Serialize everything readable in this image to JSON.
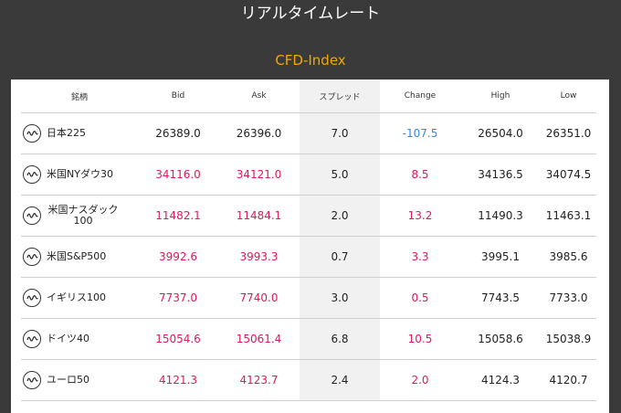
{
  "header": {
    "title": "リアルタイムレート"
  },
  "section": {
    "title": "CFD-Index"
  },
  "columns": [
    "銘柄",
    "Bid",
    "Ask",
    "スプレッド",
    "Change",
    "High",
    "Low"
  ],
  "rows": [
    {
      "name": "日本225",
      "bid": "26389.0",
      "ask": "26396.0",
      "spread": "7.0",
      "change": "-107.5",
      "high": "26504.0",
      "low": "26351.0"
    },
    {
      "name": "米国NYダウ30",
      "bid": "34116.0",
      "ask": "34121.0",
      "spread": "5.0",
      "change": "8.5",
      "high": "34136.5",
      "low": "34074.5"
    },
    {
      "name": "米国ナスダック100",
      "bid": "11482.1",
      "ask": "11484.1",
      "spread": "2.0",
      "change": "13.2",
      "high": "11490.3",
      "low": "11463.1"
    },
    {
      "name": "米国S&P500",
      "bid": "3992.6",
      "ask": "3993.3",
      "spread": "0.7",
      "change": "3.3",
      "high": "3995.1",
      "low": "3985.6"
    },
    {
      "name": "イギリス100",
      "bid": "7737.0",
      "ask": "7740.0",
      "spread": "3.0",
      "change": "0.5",
      "high": "7743.5",
      "low": "7733.0"
    },
    {
      "name": "ドイツ40",
      "bid": "15054.6",
      "ask": "15061.4",
      "spread": "6.8",
      "change": "10.5",
      "high": "15058.6",
      "low": "15038.9"
    },
    {
      "name": "ユーロ50",
      "bid": "4121.3",
      "ask": "4123.7",
      "spread": "2.4",
      "change": "2.0",
      "high": "4124.3",
      "low": "4120.7"
    }
  ],
  "colors": {
    "negative": "#3a86e0",
    "positive": "#e0185a",
    "accent": "#f0a800"
  },
  "icons": {
    "row_icon": "wave-chart-icon"
  }
}
